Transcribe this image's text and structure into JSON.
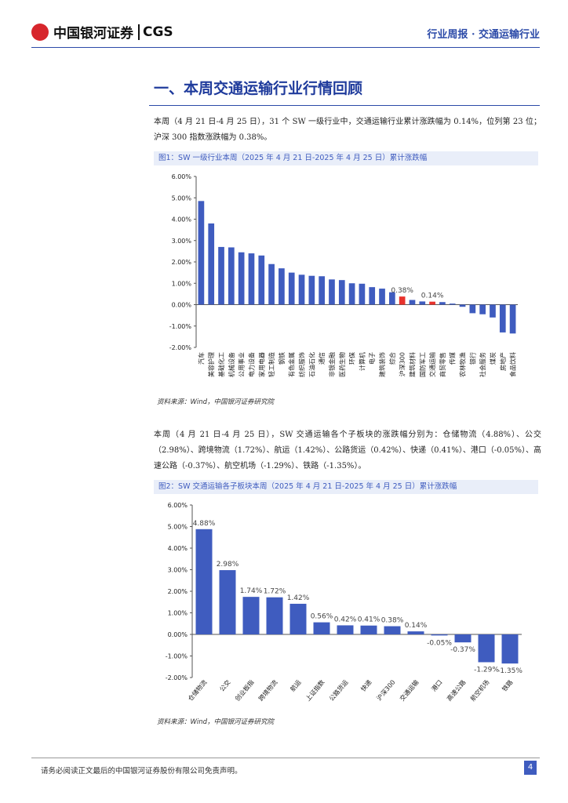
{
  "header": {
    "logo": "中国银河证券",
    "logo_en": "CGS",
    "report": "行业周报 · 交通运输行业"
  },
  "section_title": "一、本周交通运输行业行情回顾",
  "paragraphs": [
    "本周（4 月 21 日-4 月 25 日），31 个 SW 一级行业中，交通运输行业累计涨跌幅为 0.14%，位列第 23 位；沪深 300 指数涨跌幅为 0.38%。",
    "本周（4 月 21 日-4 月 25 日），SW 交通运输各个子板块的涨跌幅分别为：仓储物流（4.88%）、公交（2.98%）、跨境物流（1.72%）、航运（1.42%）、公路货运（0.42%）、快递（0.41%）、港口（-0.05%）、高速公路（-0.37%）、航空机场（-1.29%）、铁路（-1.35%）。"
  ],
  "chart_data": [
    {
      "type": "bar",
      "caption": "图1：SW 一级行业本周（2025 年 4 月 21 日-2025 年 4 月 25 日）累计涨跌幅",
      "source": "资料来源：Wind，中国银河证券研究院",
      "categories": [
        "汽车",
        "美容护理",
        "基础化工",
        "机械设备",
        "公用事业",
        "电力设备",
        "家用电器",
        "轻工制造",
        "钢铁",
        "有色金属",
        "纺织服饰",
        "石油石化",
        "通信",
        "非银金融",
        "医药生物",
        "环保",
        "计算机",
        "电子",
        "建筑装饰",
        "综合",
        "沪深300",
        "建筑材料",
        "国防军工",
        "交通运输",
        "商贸零售",
        "传媒",
        "农林牧渔",
        "银行",
        "社会服务",
        "煤炭",
        "房地产",
        "食品饮料"
      ],
      "values": [
        4.85,
        3.8,
        2.7,
        2.68,
        2.45,
        2.4,
        2.3,
        1.9,
        1.7,
        1.5,
        1.4,
        1.35,
        1.33,
        1.18,
        1.15,
        1.0,
        0.98,
        0.82,
        0.75,
        0.58,
        0.38,
        0.22,
        0.15,
        0.14,
        0.12,
        0.05,
        -0.1,
        -0.4,
        -0.45,
        -0.6,
        -1.3,
        -1.35
      ],
      "value_labels": [
        null,
        null,
        null,
        null,
        null,
        null,
        null,
        null,
        null,
        null,
        null,
        null,
        null,
        null,
        null,
        null,
        null,
        null,
        null,
        null,
        "0.38%",
        null,
        null,
        "0.14%",
        null,
        null,
        null,
        null,
        null,
        null,
        null,
        null
      ],
      "color": "#3f5cbf",
      "highlight": [
        "沪深300",
        "交通运输"
      ],
      "highlight_color": "#e8322c",
      "ylim": [
        -2,
        6
      ],
      "yticks": [
        {
          "value": -2,
          "label": "-2.00%"
        },
        {
          "value": -1,
          "label": "-1.00%"
        },
        {
          "value": 0,
          "label": "0.00%"
        },
        {
          "value": 1,
          "label": "1.00%"
        },
        {
          "value": 2,
          "label": "2.00%"
        },
        {
          "value": 3,
          "label": "3.00%"
        },
        {
          "value": 4,
          "label": "4.00%"
        },
        {
          "value": 5,
          "label": "5.00%"
        },
        {
          "value": 6,
          "label": "6.00%"
        }
      ]
    },
    {
      "type": "bar",
      "caption": "图2：SW 交通运输各子板块本周（2025 年 4 月 21 日-2025 年 4 月 25 日）累计涨跌幅",
      "source": "资料来源：Wind，中国银河证券研究院",
      "categories": [
        "仓储物流",
        "公交",
        "创业板指",
        "跨境物流",
        "航运",
        "上证指数",
        "公路货运",
        "快递",
        "沪深300",
        "交通运输",
        "港口",
        "高速公路",
        "航空机场",
        "铁路"
      ],
      "values": [
        4.88,
        2.98,
        1.74,
        1.72,
        1.42,
        0.56,
        0.42,
        0.41,
        0.38,
        0.14,
        -0.05,
        -0.37,
        -1.29,
        -1.35
      ],
      "value_labels": [
        "4.88%",
        "2.98%",
        "1.74%",
        "1.72%",
        "1.42%",
        "0.56%",
        "0.42%",
        "0.41%",
        "0.38%",
        "0.14%",
        "-0.05%",
        "-0.37%",
        "-1.29%",
        "-1.35%"
      ],
      "color": "#3f5cbf",
      "ylim": [
        -2,
        6
      ],
      "yticks": [
        {
          "value": -2,
          "label": "-2.00%"
        },
        {
          "value": -1,
          "label": "-1.00%"
        },
        {
          "value": 0,
          "label": "0.00%"
        },
        {
          "value": 1,
          "label": "1.00%"
        },
        {
          "value": 2,
          "label": "2.00%"
        },
        {
          "value": 3,
          "label": "3.00%"
        },
        {
          "value": 4,
          "label": "4.00%"
        },
        {
          "value": 5,
          "label": "5.00%"
        },
        {
          "value": 6,
          "label": "6.00%"
        }
      ]
    }
  ],
  "footer": {
    "disclaimer": "请务必阅读正文最后的中国银河证券股份有限公司免责声明。",
    "page": 4
  }
}
